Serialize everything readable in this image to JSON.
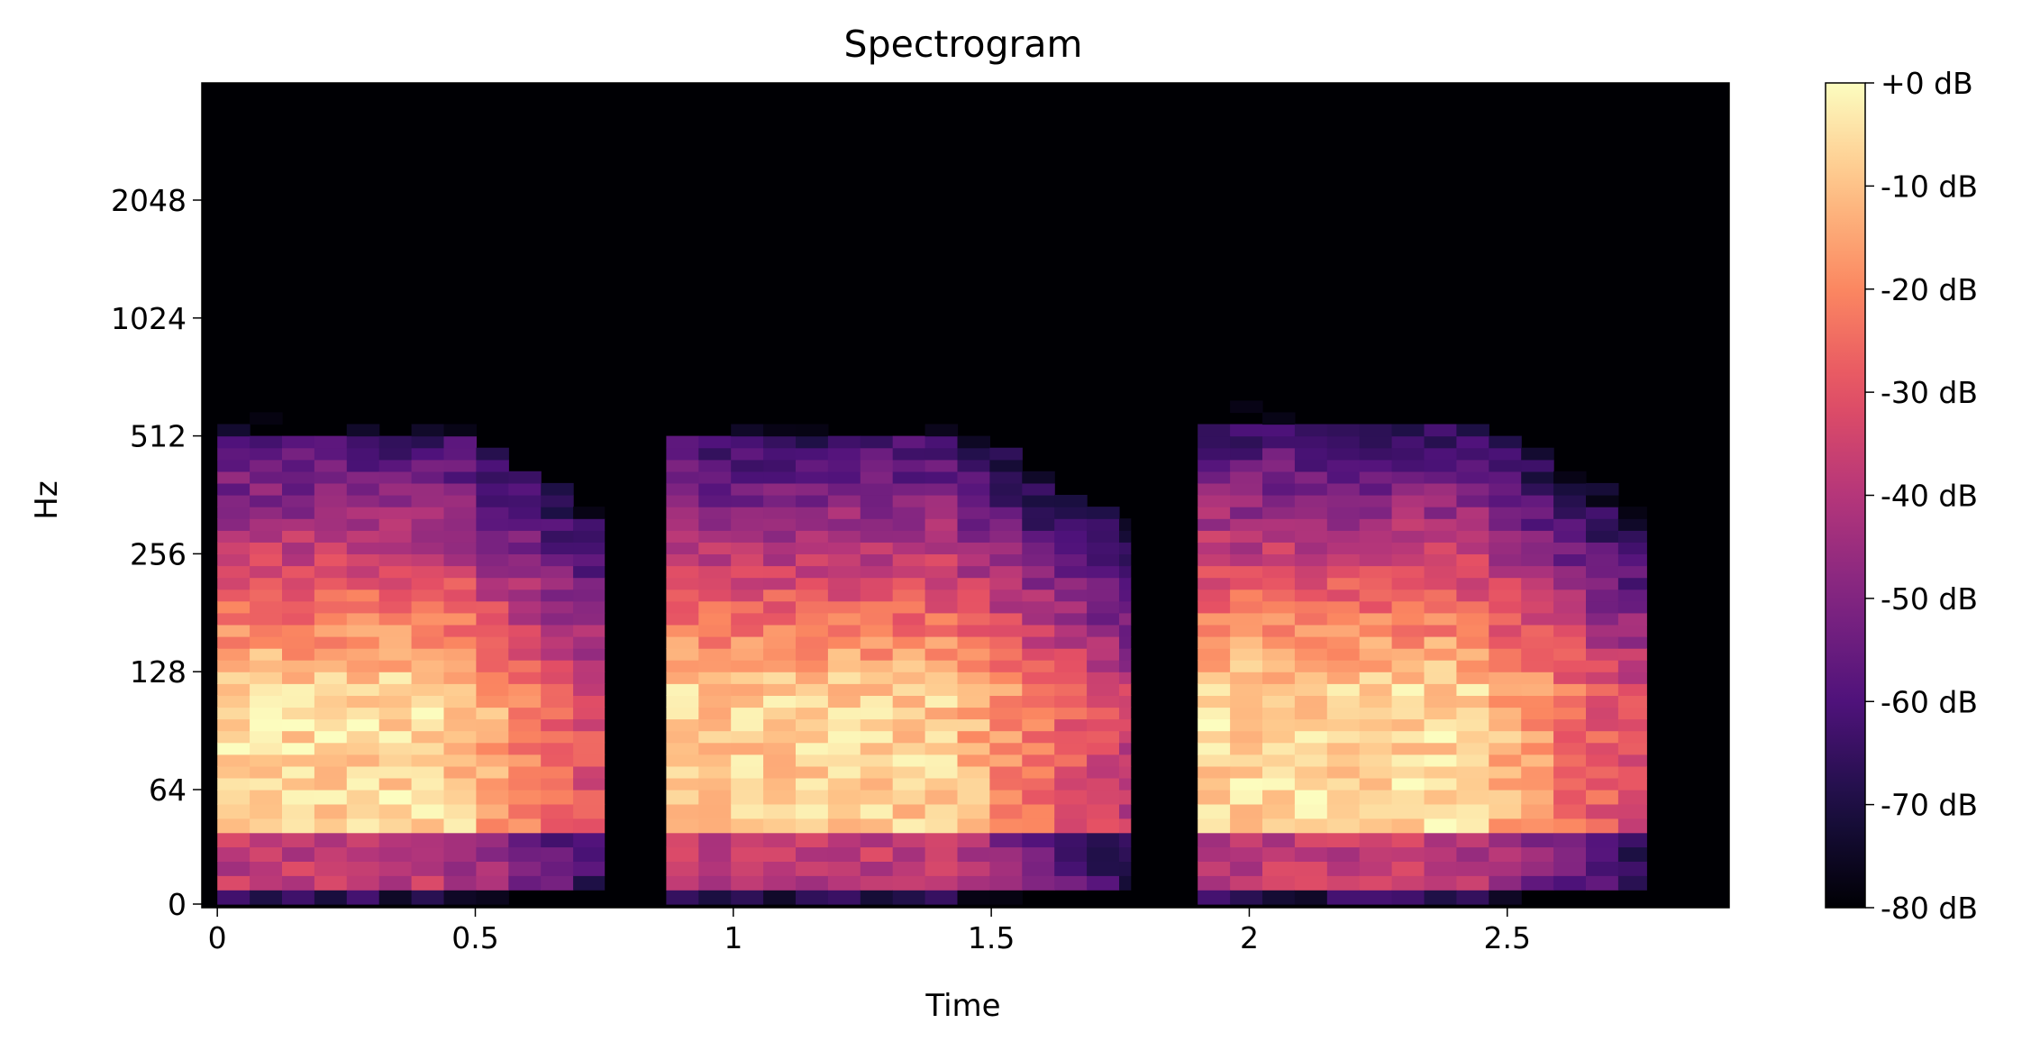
{
  "chart_data": {
    "type": "heatmap",
    "title": "Spectrogram",
    "xlabel": "Time",
    "ylabel": "Hz",
    "xlim": [
      -0.03,
      2.93
    ],
    "x_ticks": [
      {
        "value": 0,
        "label": "0"
      },
      {
        "value": 0.5,
        "label": "0.5"
      },
      {
        "value": 1,
        "label": "1"
      },
      {
        "value": 1.5,
        "label": "1.5"
      },
      {
        "value": 2,
        "label": "2"
      },
      {
        "value": 2.5,
        "label": "2.5"
      }
    ],
    "y_scale": "symlog",
    "y_ticks": [
      {
        "value": 0,
        "label": "0"
      },
      {
        "value": 64,
        "label": "64"
      },
      {
        "value": 128,
        "label": "128"
      },
      {
        "value": 256,
        "label": "256"
      },
      {
        "value": 512,
        "label": "512"
      },
      {
        "value": 1024,
        "label": "1024"
      },
      {
        "value": 2048,
        "label": "2048"
      }
    ],
    "colormap": "magma",
    "colorbar": {
      "range": [
        -80,
        0
      ],
      "ticks": [
        {
          "value": 0,
          "label": "+0 dB"
        },
        {
          "value": -10,
          "label": "-10 dB"
        },
        {
          "value": -20,
          "label": "-20 dB"
        },
        {
          "value": -30,
          "label": "-30 dB"
        },
        {
          "value": -40,
          "label": "-40 dB"
        },
        {
          "value": -50,
          "label": "-50 dB"
        },
        {
          "value": -60,
          "label": "-60 dB"
        },
        {
          "value": -70,
          "label": "-70 dB"
        },
        {
          "value": -80,
          "label": "-80 dB"
        }
      ]
    },
    "background_db": -80,
    "segments": [
      {
        "start": 0.0,
        "end": 0.75,
        "top_hz": 600,
        "peak_db": 0
      },
      {
        "start": 0.87,
        "end": 1.77,
        "top_hz": 620,
        "peak_db": -2
      },
      {
        "start": 1.9,
        "end": 2.77,
        "top_hz": 640,
        "peak_db": 0
      }
    ],
    "time_frame_step": 0.0627
  }
}
